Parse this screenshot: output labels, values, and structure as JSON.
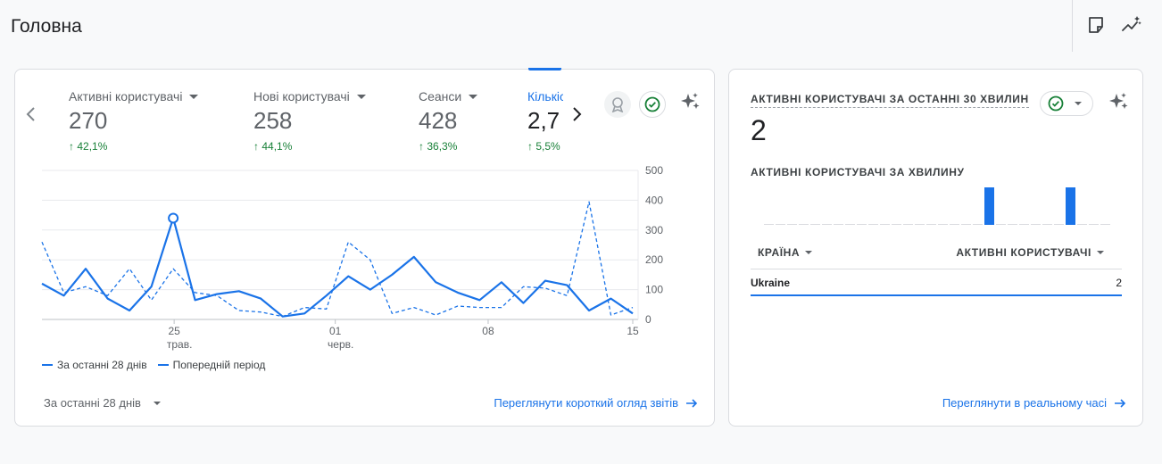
{
  "page": {
    "title": "Головна"
  },
  "header_icons": [
    "note-icon",
    "insights-icon"
  ],
  "overview": {
    "metrics": [
      {
        "label": "Активні користувачі",
        "value": "270",
        "change": "42,1%"
      },
      {
        "label": "Нові користувачі",
        "value": "258",
        "change": "44,1%"
      },
      {
        "label": "Сеанси",
        "value": "428",
        "change": "36,3%"
      },
      {
        "label": "Кількість подій",
        "value": "2,7",
        "change": "5,5%"
      }
    ],
    "legend": {
      "current": "За останні 28 днів",
      "previous": "Попередній період"
    },
    "date_range": "За останні 28 днів",
    "link": "Переглянути короткий огляд звітів"
  },
  "chart_data": {
    "type": "line",
    "x_ticks": [
      {
        "day": "25",
        "month": "трав."
      },
      {
        "day": "01",
        "month": "черв."
      },
      {
        "day": "08",
        "month": ""
      },
      {
        "day": "15",
        "month": ""
      }
    ],
    "y_ticks": [
      "500",
      "400",
      "300",
      "200",
      "100",
      "0"
    ],
    "ylim": [
      0,
      500
    ],
    "series": [
      {
        "name": "За останні 28 днів",
        "style": "solid",
        "color": "#1a73e8",
        "values": [
          120,
          80,
          170,
          70,
          30,
          110,
          340,
          65,
          85,
          95,
          70,
          10,
          20,
          80,
          145,
          100,
          150,
          210,
          125,
          90,
          65,
          125,
          55,
          130,
          115,
          30,
          70,
          20
        ]
      },
      {
        "name": "Попередній період",
        "style": "dashed",
        "color": "#1a73e8",
        "values": [
          260,
          90,
          110,
          80,
          170,
          65,
          170,
          90,
          80,
          30,
          25,
          10,
          40,
          35,
          260,
          200,
          20,
          40,
          15,
          45,
          40,
          40,
          110,
          105,
          80,
          395,
          15,
          40
        ]
      }
    ],
    "highlight_index": 6
  },
  "realtime": {
    "title": "АКТИВНІ КОРИСТУВАЧІ ЗА ОСТАННІ 30 ХВИЛИН",
    "value": "2",
    "subtitle": "АКТИВНІ КОРИСТУВАЧІ ЗА ХВИЛИНУ",
    "per_minute": [
      0,
      0,
      0,
      0,
      0,
      0,
      0,
      0,
      0,
      0,
      0,
      0,
      0,
      0,
      0,
      0,
      0,
      0,
      0,
      1,
      0,
      0,
      0,
      0,
      0,
      0,
      1,
      0,
      0,
      0
    ],
    "table": {
      "col1": "КРАЇНА",
      "col2": "АКТИВНІ КОРИСТУВАЧІ",
      "rows": [
        {
          "country": "Ukraine",
          "users": "2"
        }
      ]
    },
    "link": "Переглянути в реальному часі"
  }
}
